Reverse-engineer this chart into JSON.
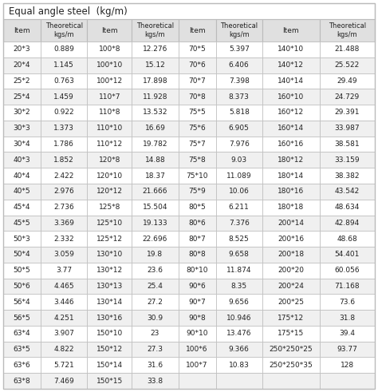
{
  "title": "Equal angle steel  (kg/m)",
  "col1": [
    [
      "20*3",
      "0.889"
    ],
    [
      "20*4",
      "1.145"
    ],
    [
      "25*2",
      "0.763"
    ],
    [
      "25*4",
      "1.459"
    ],
    [
      "30*2",
      "0.922"
    ],
    [
      "30*3",
      "1.373"
    ],
    [
      "30*4",
      "1.786"
    ],
    [
      "40*3",
      "1.852"
    ],
    [
      "40*4",
      "2.422"
    ],
    [
      "40*5",
      "2.976"
    ],
    [
      "45*4",
      "2.736"
    ],
    [
      "45*5",
      "3.369"
    ],
    [
      "50*3",
      "2.332"
    ],
    [
      "50*4",
      "3.059"
    ],
    [
      "50*5",
      "3.77"
    ],
    [
      "50*6",
      "4.465"
    ],
    [
      "56*4",
      "3.446"
    ],
    [
      "56*5",
      "4.251"
    ],
    [
      "63*4",
      "3.907"
    ],
    [
      "63*5",
      "4.822"
    ],
    [
      "63*6",
      "5.721"
    ],
    [
      "63*8",
      "7.469"
    ]
  ],
  "col2": [
    [
      "100*8",
      "12.276"
    ],
    [
      "100*10",
      "15.12"
    ],
    [
      "100*12",
      "17.898"
    ],
    [
      "110*7",
      "11.928"
    ],
    [
      "110*8",
      "13.532"
    ],
    [
      "110*10",
      "16.69"
    ],
    [
      "110*12",
      "19.782"
    ],
    [
      "120*8",
      "14.88"
    ],
    [
      "120*10",
      "18.37"
    ],
    [
      "120*12",
      "21.666"
    ],
    [
      "125*8",
      "15.504"
    ],
    [
      "125*10",
      "19.133"
    ],
    [
      "125*12",
      "22.696"
    ],
    [
      "130*10",
      "19.8"
    ],
    [
      "130*12",
      "23.6"
    ],
    [
      "130*13",
      "25.4"
    ],
    [
      "130*14",
      "27.2"
    ],
    [
      "130*16",
      "30.9"
    ],
    [
      "150*10",
      "23"
    ],
    [
      "150*12",
      "27.3"
    ],
    [
      "150*14",
      "31.6"
    ],
    [
      "150*15",
      "33.8"
    ]
  ],
  "col3": [
    [
      "70*5",
      "5.397"
    ],
    [
      "70*6",
      "6.406"
    ],
    [
      "70*7",
      "7.398"
    ],
    [
      "70*8",
      "8.373"
    ],
    [
      "75*5",
      "5.818"
    ],
    [
      "75*6",
      "6.905"
    ],
    [
      "75*7",
      "7.976"
    ],
    [
      "75*8",
      "9.03"
    ],
    [
      "75*10",
      "11.089"
    ],
    [
      "75*9",
      "10.06"
    ],
    [
      "80*5",
      "6.211"
    ],
    [
      "80*6",
      "7.376"
    ],
    [
      "80*7",
      "8.525"
    ],
    [
      "80*8",
      "9.658"
    ],
    [
      "80*10",
      "11.874"
    ],
    [
      "90*6",
      "8.35"
    ],
    [
      "90*7",
      "9.656"
    ],
    [
      "90*8",
      "10.946"
    ],
    [
      "90*10",
      "13.476"
    ],
    [
      "100*6",
      "9.366"
    ],
    [
      "100*7",
      "10.83"
    ],
    [
      "",
      ""
    ]
  ],
  "col4": [
    [
      "140*10",
      "21.488"
    ],
    [
      "140*12",
      "25.522"
    ],
    [
      "140*14",
      "29.49"
    ],
    [
      "160*10",
      "24.729"
    ],
    [
      "160*12",
      "29.391"
    ],
    [
      "160*14",
      "33.987"
    ],
    [
      "160*16",
      "38.581"
    ],
    [
      "180*12",
      "33.159"
    ],
    [
      "180*14",
      "38.382"
    ],
    [
      "180*16",
      "43.542"
    ],
    [
      "180*18",
      "48.634"
    ],
    [
      "200*14",
      "42.894"
    ],
    [
      "200*16",
      "48.68"
    ],
    [
      "200*18",
      "54.401"
    ],
    [
      "200*20",
      "60.056"
    ],
    [
      "200*24",
      "71.168"
    ],
    [
      "200*25",
      "73.6"
    ],
    [
      "175*12",
      "31.8"
    ],
    [
      "175*15",
      "39.4"
    ],
    [
      "250*250*25",
      "93.77"
    ],
    [
      "250*250*35",
      "128"
    ],
    [
      "",
      ""
    ]
  ],
  "header_bg": "#e0e0e0",
  "row_bg_odd": "#ffffff",
  "row_bg_even": "#f0f0f0",
  "border_color": "#bbbbbb",
  "text_color": "#222222",
  "font_size": 6.5,
  "header_font_size": 6.5,
  "title_font_size": 8.5
}
